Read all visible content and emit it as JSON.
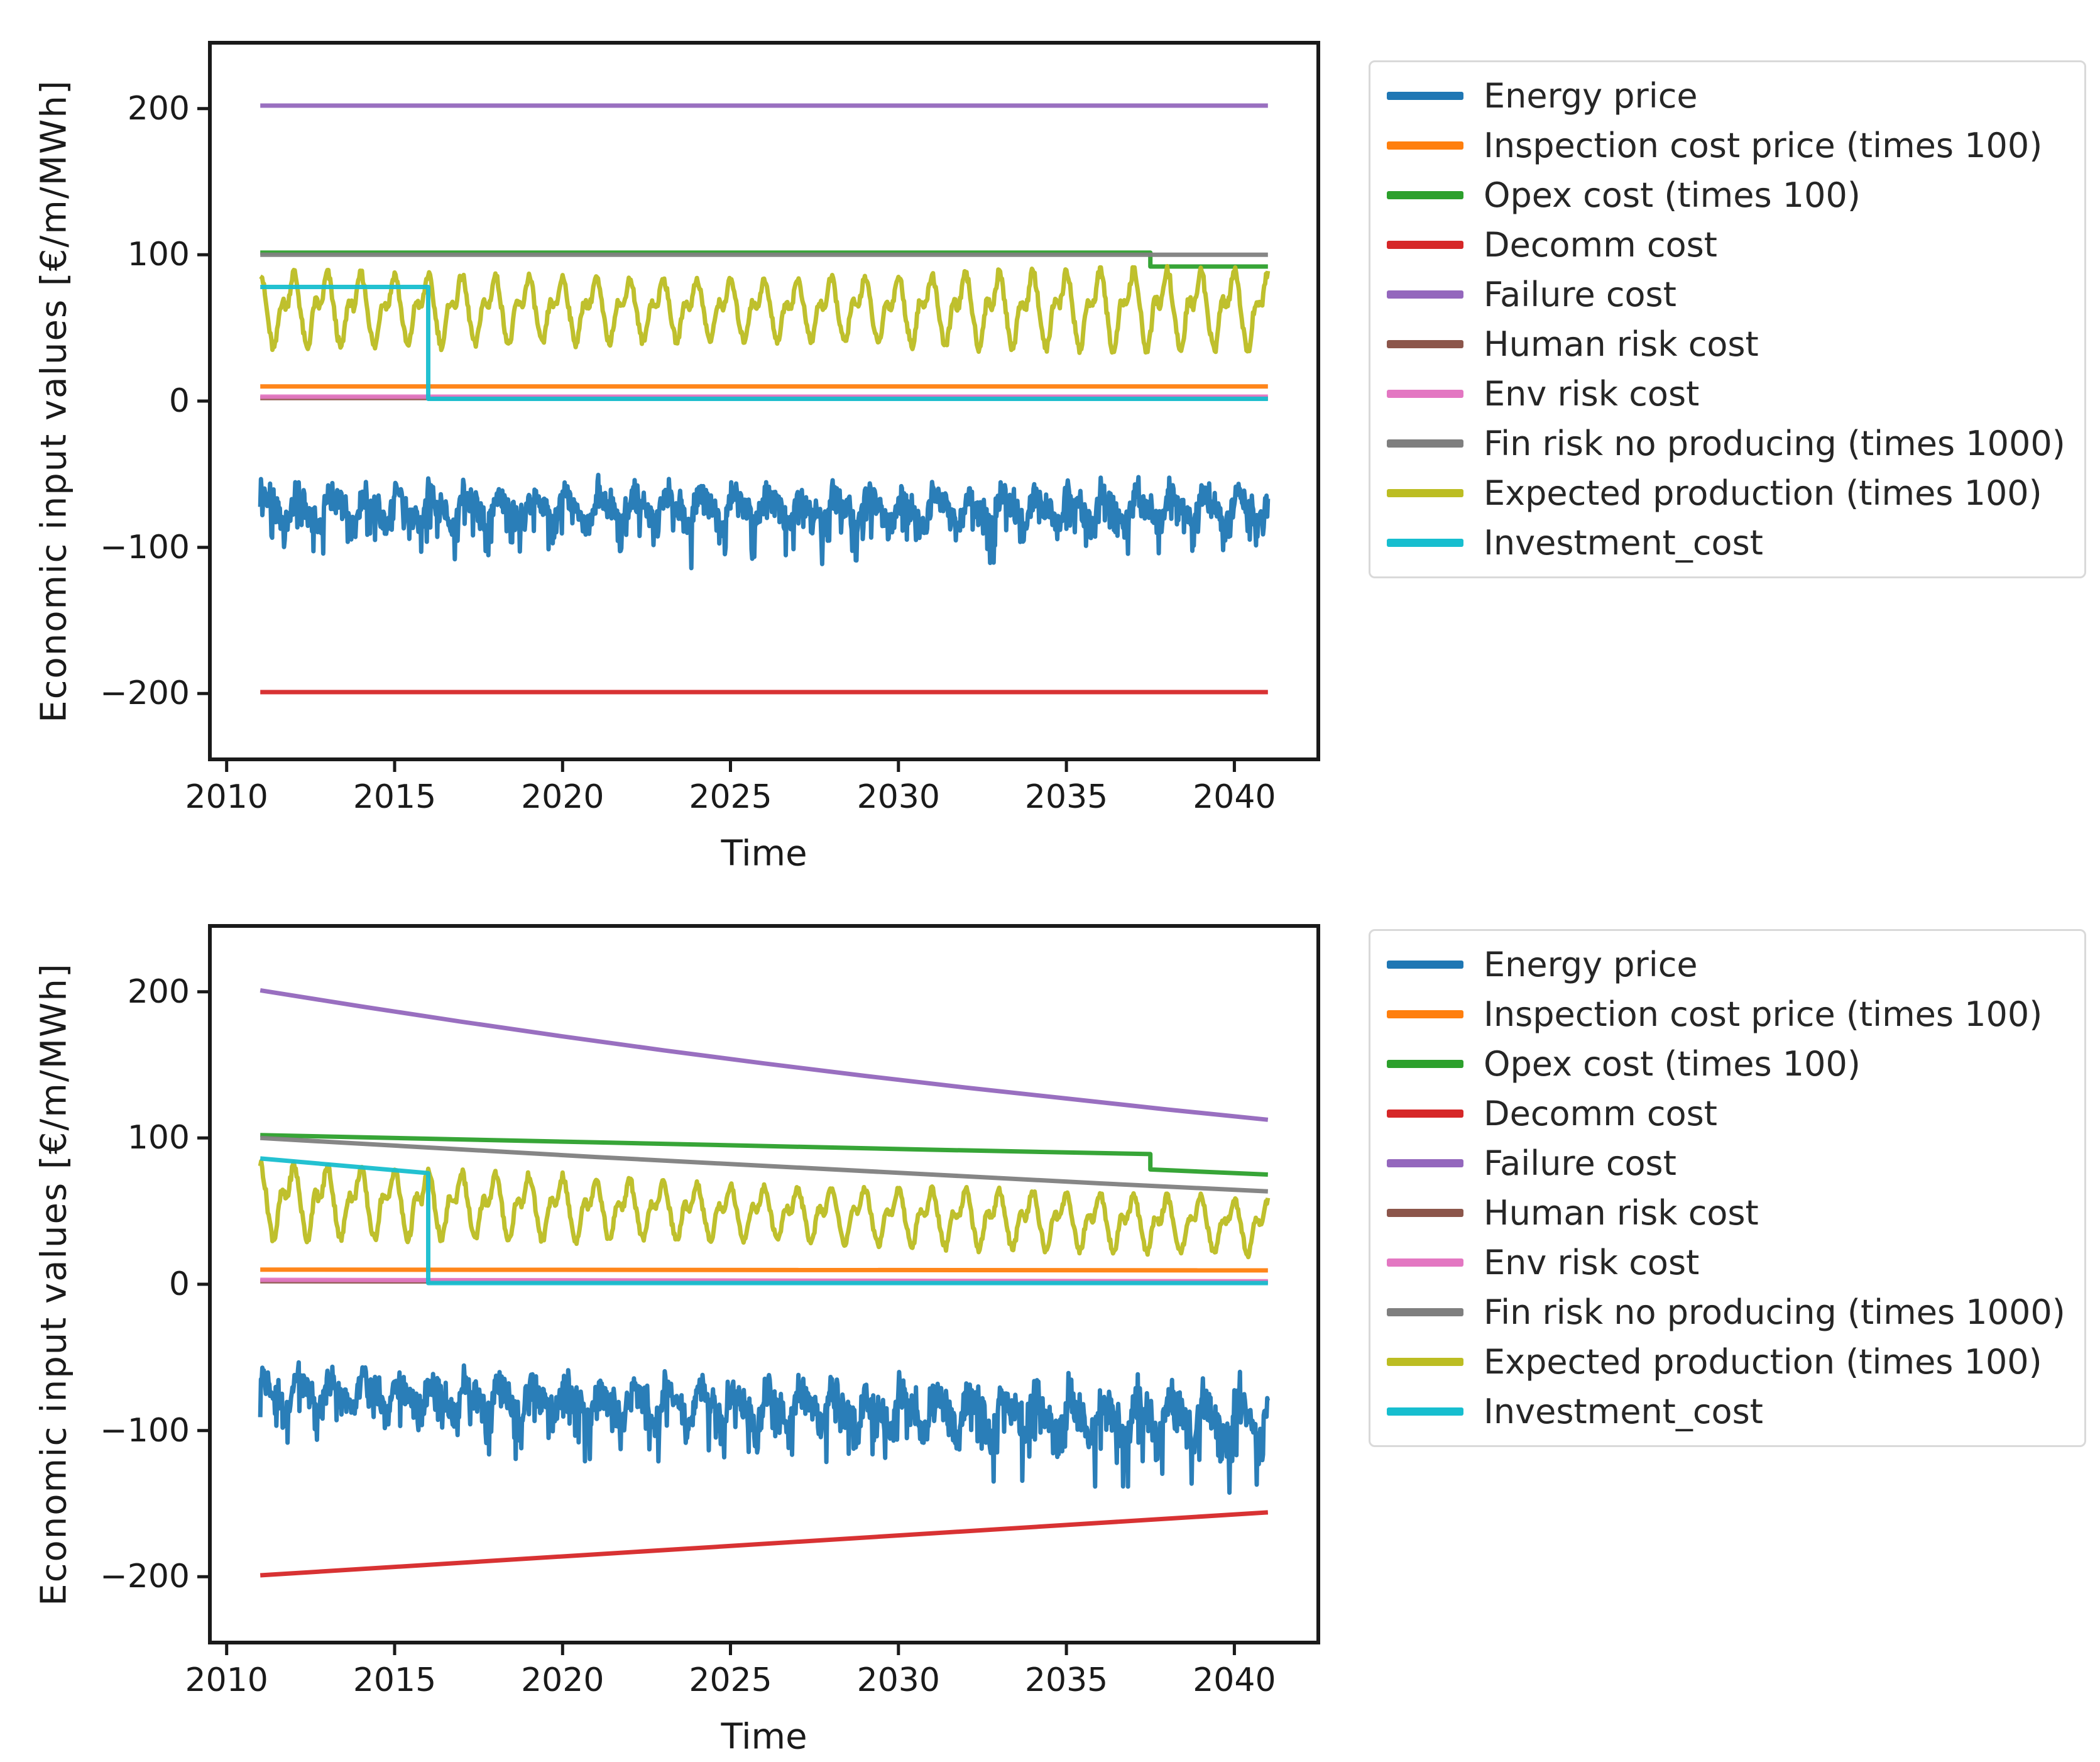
{
  "page": {
    "background": "#ffffff"
  },
  "text_color": "#1a1a1a",
  "legend_border_color": "#d9d9d9",
  "chart_data": [
    {
      "type": "line",
      "title": "",
      "xlabel": "Time",
      "ylabel": "Economic input values [€/m/MWh]",
      "xlim": [
        2009.5,
        2042.5
      ],
      "ylim": [
        -245,
        245
      ],
      "x_data_range": [
        2011,
        2041
      ],
      "grid": false,
      "xticks": [
        {
          "value": 2010,
          "label": "2010"
        },
        {
          "value": 2015,
          "label": "2015"
        },
        {
          "value": 2020,
          "label": "2020"
        },
        {
          "value": 2025,
          "label": "2025"
        },
        {
          "value": 2030,
          "label": "2030"
        },
        {
          "value": 2035,
          "label": "2035"
        },
        {
          "value": 2040,
          "label": "2040"
        }
      ],
      "yticks": [
        {
          "value": 200,
          "label": "200"
        },
        {
          "value": 100,
          "label": "100"
        },
        {
          "value": 0,
          "label": "0"
        },
        {
          "value": -100,
          "label": "−100"
        },
        {
          "value": -200,
          "label": "−200"
        }
      ],
      "legend": {
        "position": "outside-upper-right"
      },
      "series": [
        {
          "name": "Energy price",
          "slug": "energy-price",
          "color": "#1f77b4",
          "kind": "osc",
          "shape": "price",
          "mean": [
            [
              2011,
              -74
            ],
            [
              2041,
              -74
            ]
          ],
          "amp": [
            [
              2011,
              24
            ],
            [
              2041,
              24
            ]
          ],
          "seed": 1,
          "samples_per_year": 48
        },
        {
          "name": "Inspection cost price (times 100)",
          "slug": "inspection-cost",
          "color": "#ff7f0e",
          "kind": "segments",
          "points": [
            [
              2011,
              10
            ],
            [
              2041,
              10
            ]
          ]
        },
        {
          "name": "Opex cost (times 100)",
          "slug": "opex-cost",
          "color": "#2ca02c",
          "kind": "segments",
          "points": [
            [
              2011,
              101.5
            ],
            [
              2037.5,
              101.5
            ],
            [
              2037.5,
              92
            ],
            [
              2041,
              92
            ]
          ]
        },
        {
          "name": "Decomm cost",
          "slug": "decomm-cost",
          "color": "#d62728",
          "kind": "segments",
          "points": [
            [
              2011,
              -199
            ],
            [
              2041,
              -199
            ]
          ]
        },
        {
          "name": "Failure cost",
          "slug": "failure-cost",
          "color": "#9467bd",
          "kind": "segments",
          "points": [
            [
              2011,
              202
            ],
            [
              2041,
              202
            ]
          ]
        },
        {
          "name": "Human risk cost",
          "slug": "human-risk-cost",
          "color": "#8c564b",
          "kind": "segments",
          "points": [
            [
              2011,
              2
            ],
            [
              2041,
              2
            ]
          ]
        },
        {
          "name": "Env risk cost",
          "slug": "env-risk-cost",
          "color": "#e377c2",
          "kind": "segments",
          "points": [
            [
              2011,
              3
            ],
            [
              2041,
              3
            ]
          ]
        },
        {
          "name": "Fin risk no producing (times 1000)",
          "slug": "fin-risk",
          "color": "#7f7f7f",
          "kind": "segments",
          "points": [
            [
              2011,
              100
            ],
            [
              2041,
              100
            ]
          ]
        },
        {
          "name": "Expected production (times 100)",
          "slug": "expected-production",
          "color": "#bcbd22",
          "kind": "osc",
          "shape": "production",
          "mean": [
            [
              2011,
              63
            ],
            [
              2041,
              63
            ]
          ],
          "amp": [
            [
              2011,
              34
            ],
            [
              2020,
              29
            ],
            [
              2026,
              26
            ],
            [
              2033,
              33
            ],
            [
              2038,
              36
            ],
            [
              2041,
              34
            ]
          ],
          "seed": 2,
          "samples_per_year": 36
        },
        {
          "name": "Investment_cost",
          "slug": "investment-cost",
          "color": "#17becf",
          "kind": "segments",
          "points": [
            [
              2011,
              78
            ],
            [
              2016,
              78
            ],
            [
              2016,
              1.5
            ],
            [
              2041,
              1.5
            ]
          ]
        }
      ]
    },
    {
      "type": "line",
      "title": "",
      "xlabel": "Time",
      "ylabel": "Economic input values [€/m/MWh]",
      "xlim": [
        2009.5,
        2042.5
      ],
      "ylim": [
        -245,
        245
      ],
      "x_data_range": [
        2011,
        2041
      ],
      "grid": false,
      "xticks": [
        {
          "value": 2010,
          "label": "2010"
        },
        {
          "value": 2015,
          "label": "2015"
        },
        {
          "value": 2020,
          "label": "2020"
        },
        {
          "value": 2025,
          "label": "2025"
        },
        {
          "value": 2030,
          "label": "2030"
        },
        {
          "value": 2035,
          "label": "2035"
        },
        {
          "value": 2040,
          "label": "2040"
        }
      ],
      "yticks": [
        {
          "value": 200,
          "label": "200"
        },
        {
          "value": 100,
          "label": "100"
        },
        {
          "value": 0,
          "label": "0"
        },
        {
          "value": -100,
          "label": "−100"
        },
        {
          "value": -200,
          "label": "−200"
        }
      ],
      "legend": {
        "position": "outside-upper-right"
      },
      "series": [
        {
          "name": "Energy price",
          "slug": "energy-price",
          "color": "#1f77b4",
          "kind": "osc",
          "shape": "price",
          "mean": [
            [
              2011,
              -74
            ],
            [
              2041,
              -94
            ]
          ],
          "amp": [
            [
              2011,
              24
            ],
            [
              2041,
              34
            ]
          ],
          "seed": 3,
          "samples_per_year": 48
        },
        {
          "name": "Inspection cost price (times 100)",
          "slug": "inspection-cost",
          "color": "#ff7f0e",
          "kind": "segments",
          "points": [
            [
              2011,
              10
            ],
            [
              2041,
              9.5
            ]
          ]
        },
        {
          "name": "Opex cost (times 100)",
          "slug": "opex-cost",
          "color": "#2ca02c",
          "kind": "segments",
          "points": [
            [
              2011,
              102
            ],
            [
              2016,
              99.5
            ],
            [
              2021,
              97
            ],
            [
              2026,
              94.5
            ],
            [
              2031,
              92
            ],
            [
              2037.5,
              89
            ],
            [
              2037.5,
              78.5
            ],
            [
              2041,
              75
            ]
          ]
        },
        {
          "name": "Decomm cost",
          "slug": "decomm-cost",
          "color": "#d62728",
          "kind": "segments",
          "points": [
            [
              2011,
              -199
            ],
            [
              2041,
              -156
            ]
          ]
        },
        {
          "name": "Failure cost",
          "slug": "failure-cost",
          "color": "#9467bd",
          "kind": "segments",
          "points": [
            [
              2011,
              201
            ],
            [
              2014,
              190
            ],
            [
              2017,
              179.5
            ],
            [
              2020,
              169.5
            ],
            [
              2023,
              160
            ],
            [
              2026,
              151
            ],
            [
              2029,
              142.5
            ],
            [
              2032,
              134.5
            ],
            [
              2035,
              127
            ],
            [
              2038,
              119.5
            ],
            [
              2041,
              112.5
            ]
          ]
        },
        {
          "name": "Human risk cost",
          "slug": "human-risk-cost",
          "color": "#8c564b",
          "kind": "segments",
          "points": [
            [
              2011,
              2
            ],
            [
              2041,
              1.5
            ]
          ]
        },
        {
          "name": "Env risk cost",
          "slug": "env-risk-cost",
          "color": "#e377c2",
          "kind": "segments",
          "points": [
            [
              2011,
              3
            ],
            [
              2041,
              2
            ]
          ]
        },
        {
          "name": "Fin risk no producing (times 1000)",
          "slug": "fin-risk",
          "color": "#7f7f7f",
          "kind": "segments",
          "points": [
            [
              2011,
              100
            ],
            [
              2016,
              93.5
            ],
            [
              2021,
              87
            ],
            [
              2026,
              81
            ],
            [
              2031,
              75
            ],
            [
              2036,
              69
            ],
            [
              2041,
              63.5
            ]
          ]
        },
        {
          "name": "Expected production (times 100)",
          "slug": "expected-production",
          "color": "#bcbd22",
          "kind": "osc",
          "shape": "production",
          "mean": [
            [
              2011,
              58
            ],
            [
              2021,
              52
            ],
            [
              2031,
              46
            ],
            [
              2041,
              40
            ]
          ],
          "amp": [
            [
              2011,
              33
            ],
            [
              2020,
              28
            ],
            [
              2026,
              23
            ],
            [
              2033,
              26
            ],
            [
              2041,
              24
            ]
          ],
          "seed": 4,
          "samples_per_year": 36
        },
        {
          "name": "Investment_cost",
          "slug": "investment-cost",
          "color": "#17becf",
          "kind": "segments",
          "points": [
            [
              2011,
              86
            ],
            [
              2016,
              76
            ],
            [
              2016,
              0.8
            ],
            [
              2041,
              0.8
            ]
          ]
        }
      ]
    }
  ]
}
